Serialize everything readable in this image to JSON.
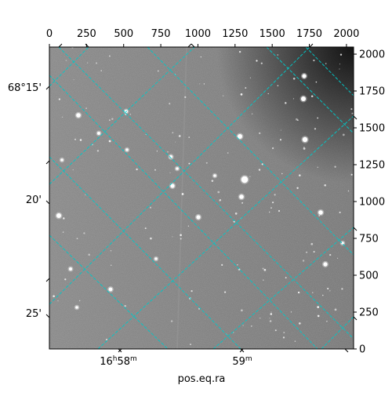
{
  "figure": {
    "xlabel": "pos.eq.ra",
    "pixel_axis_top_ticks": [
      "0",
      "250",
      "500",
      "750",
      "1000",
      "1250",
      "1500",
      "1750",
      "2000"
    ],
    "pixel_axis_right_ticks": [
      "2000",
      "1750",
      "1500",
      "1250",
      "1000",
      "750",
      "500",
      "250",
      "0"
    ],
    "dec_ticks": [
      "68°15'",
      "20'",
      "25'"
    ],
    "ra_ticks": [
      "16h58m",
      "59m"
    ],
    "ra_ticks_parts": [
      {
        "h": "16",
        "h_unit": "h",
        "m": "58",
        "m_unit": "m"
      },
      {
        "m": "59",
        "m_unit": "m"
      }
    ],
    "grid_color": "#00c8c8",
    "frame_color": "#000000",
    "image_style": "grayscale star field"
  }
}
